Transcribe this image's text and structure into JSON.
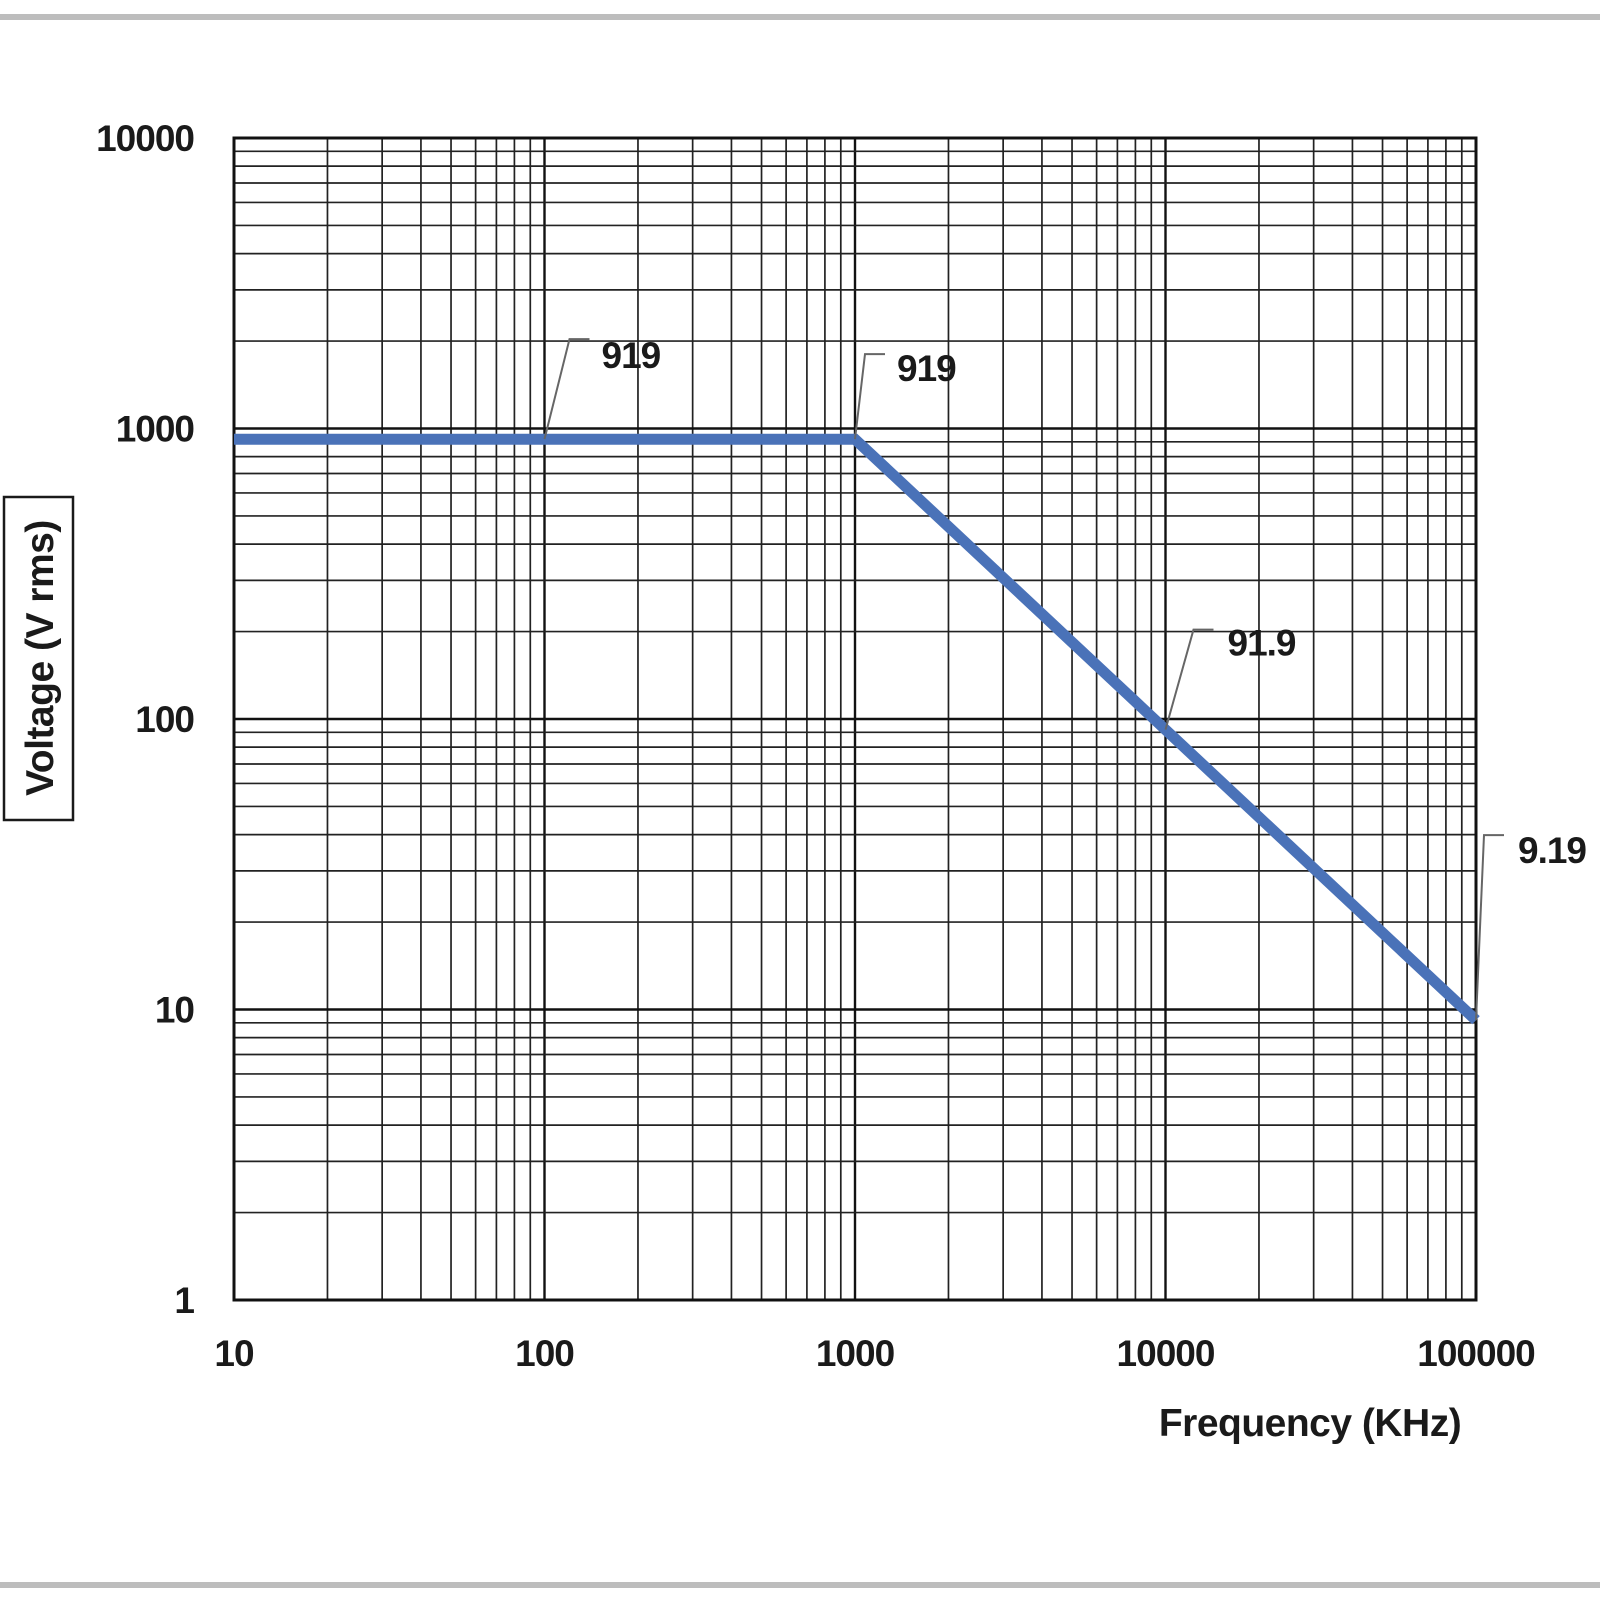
{
  "chart_data": {
    "type": "line",
    "xlabel": "Frequency (KHz)",
    "ylabel": "Voltage (V rms)",
    "x_scale": "log",
    "y_scale": "log",
    "xlim": [
      10,
      100000
    ],
    "ylim": [
      1,
      10000
    ],
    "x_ticks": [
      "10",
      "100",
      "1000",
      "10000",
      "100000"
    ],
    "y_ticks": [
      "1",
      "10",
      "100",
      "1000",
      "10000"
    ],
    "grid": true,
    "series": [
      {
        "color": "#4a72b8",
        "points": [
          {
            "x": 10,
            "y": 919
          },
          {
            "x": 1000,
            "y": 919
          },
          {
            "x": 100000,
            "y": 9.19
          }
        ]
      }
    ],
    "annotations": [
      {
        "label": "919",
        "x": 100,
        "y": 919
      },
      {
        "label": "919",
        "x": 1000,
        "y": 919
      },
      {
        "label": "91.9",
        "x": 10000,
        "y": 91.9
      },
      {
        "label": "9.19",
        "x": 100000,
        "y": 9.19
      }
    ]
  }
}
